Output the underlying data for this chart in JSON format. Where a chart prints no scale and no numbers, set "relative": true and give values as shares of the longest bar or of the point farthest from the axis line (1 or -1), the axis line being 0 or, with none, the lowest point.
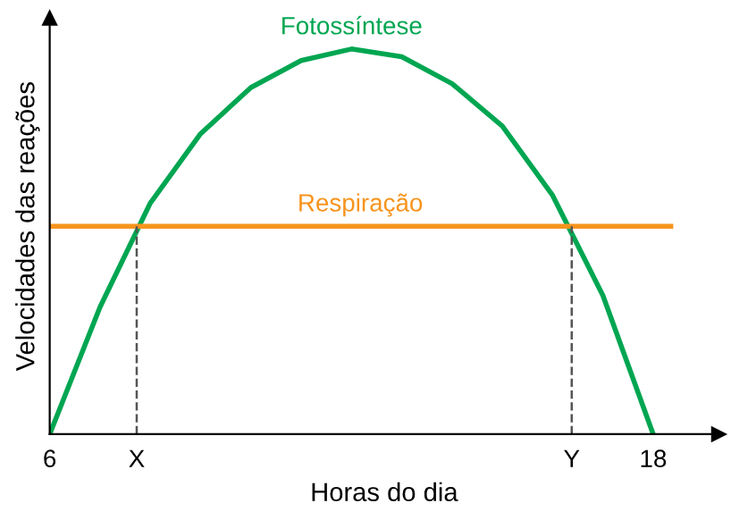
{
  "chart_data": {
    "type": "line",
    "relative": true,
    "xlabel": "Horas do dia",
    "ylabel": "Velocidades das reações",
    "xlim": [
      6,
      19.3
    ],
    "xticks": [
      6,
      {
        "value": 7.73,
        "label": "X"
      },
      {
        "value": 16.38,
        "label": "Y"
      },
      18
    ],
    "series": [
      {
        "name": "Fotossíntese",
        "color": "#00a651",
        "x": [
          6,
          7,
          8,
          9,
          10,
          11,
          12,
          13,
          14,
          15,
          16,
          17,
          18
        ],
        "values": [
          0,
          0.33,
          0.6,
          0.78,
          0.9,
          0.97,
          1.0,
          0.98,
          0.91,
          0.8,
          0.62,
          0.36,
          0
        ]
      },
      {
        "name": "Respiração",
        "color": "#f7941d",
        "x": [
          6,
          18.35
        ],
        "values": [
          0.54,
          0.54
        ]
      }
    ],
    "ref_lines": [
      {
        "axis": "x",
        "value": 7.73,
        "label": null,
        "color": "#555555",
        "line_style": "dashed"
      },
      {
        "axis": "x",
        "value": 16.38,
        "label": null,
        "color": "#555555",
        "line_style": "dashed"
      }
    ],
    "grid": false,
    "marker": "none",
    "line_style": "solid"
  }
}
